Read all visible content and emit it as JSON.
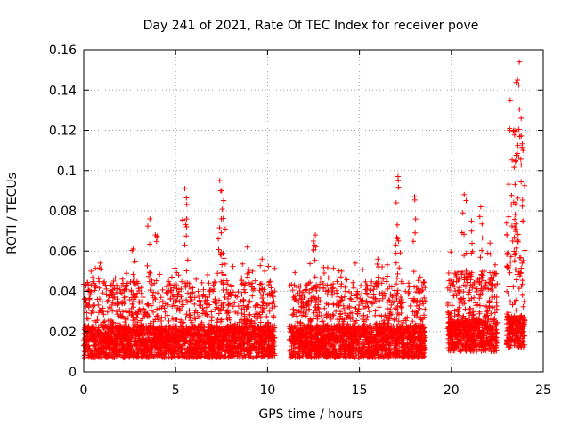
{
  "chart_data": {
    "type": "scatter",
    "title": "Day 241 of 2021, Rate Of TEC Index for receiver pove",
    "xlabel": "GPS time / hours",
    "ylabel": "ROTI / TECUs",
    "xlim": [
      0,
      25
    ],
    "ylim": [
      0,
      0.16
    ],
    "xticks": [
      "0",
      "5",
      "10",
      "15",
      "20",
      "25"
    ],
    "yticks": [
      "0",
      "0.02",
      "0.04",
      "0.06",
      "0.08",
      "0.1",
      "0.12",
      "0.14",
      "0.16"
    ],
    "grid": true,
    "marker": "plus",
    "series_color": "#ff0000",
    "segments": [
      {
        "x_start": 0.0,
        "x_end": 10.4,
        "baseline": 0.015,
        "typical_max": 0.045
      },
      {
        "x_start": 11.2,
        "x_end": 18.6,
        "baseline": 0.015,
        "typical_max": 0.045
      },
      {
        "x_start": 19.8,
        "x_end": 22.5,
        "baseline": 0.018,
        "typical_max": 0.05
      },
      {
        "x_start": 23.0,
        "x_end": 24.0,
        "baseline": 0.02,
        "typical_max": 0.07
      }
    ],
    "peaks": [
      {
        "x": 0.4,
        "y": 0.05
      },
      {
        "x": 0.9,
        "y": 0.054
      },
      {
        "x": 2.7,
        "y": 0.061
      },
      {
        "x": 3.6,
        "y": 0.076
      },
      {
        "x": 3.9,
        "y": 0.068
      },
      {
        "x": 5.5,
        "y": 0.091
      },
      {
        "x": 5.6,
        "y": 0.076
      },
      {
        "x": 7.4,
        "y": 0.095
      },
      {
        "x": 7.5,
        "y": 0.09
      },
      {
        "x": 7.7,
        "y": 0.071
      },
      {
        "x": 8.9,
        "y": 0.062
      },
      {
        "x": 9.7,
        "y": 0.056
      },
      {
        "x": 12.6,
        "y": 0.068
      },
      {
        "x": 16.0,
        "y": 0.056
      },
      {
        "x": 17.0,
        "y": 0.084
      },
      {
        "x": 17.1,
        "y": 0.097
      },
      {
        "x": 18.0,
        "y": 0.087
      },
      {
        "x": 20.7,
        "y": 0.088
      },
      {
        "x": 21.1,
        "y": 0.075
      },
      {
        "x": 21.6,
        "y": 0.082
      },
      {
        "x": 22.1,
        "y": 0.064
      },
      {
        "x": 23.2,
        "y": 0.135
      },
      {
        "x": 23.4,
        "y": 0.12
      },
      {
        "x": 23.5,
        "y": 0.105
      },
      {
        "x": 23.6,
        "y": 0.145
      },
      {
        "x": 23.7,
        "y": 0.154
      },
      {
        "x": 23.8,
        "y": 0.126
      },
      {
        "x": 23.9,
        "y": 0.11
      }
    ]
  }
}
